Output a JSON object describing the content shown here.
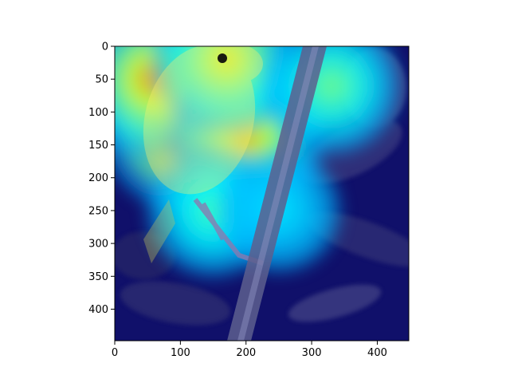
{
  "chart_data": {
    "type": "heatmap",
    "title": "",
    "xlabel": "",
    "ylabel": "",
    "xlim": [
      0,
      448
    ],
    "ylim": [
      448,
      0
    ],
    "y_inverted": true,
    "xticks": [
      0,
      100,
      200,
      300,
      400
    ],
    "yticks": [
      0,
      50,
      100,
      150,
      200,
      250,
      300,
      350,
      400
    ],
    "xtick_labels": [
      "0",
      "100",
      "200",
      "300",
      "400"
    ],
    "ytick_labels": [
      "0",
      "50",
      "100",
      "150",
      "200",
      "250",
      "300",
      "350",
      "400"
    ],
    "grid": false,
    "colormap": "jet",
    "overlay": "activation heatmap blended over photograph of a yellow bird perched on a branch",
    "hotspots": [
      {
        "x": 115,
        "y": 115,
        "intensity": 1.0
      },
      {
        "x": 60,
        "y": 50,
        "intensity": 0.75
      },
      {
        "x": 200,
        "y": 140,
        "intensity": 0.7
      },
      {
        "x": 170,
        "y": 20,
        "intensity": 0.65
      },
      {
        "x": 330,
        "y": 60,
        "intensity": 0.5
      },
      {
        "x": 150,
        "y": 250,
        "intensity": 0.45
      },
      {
        "x": 250,
        "y": 250,
        "intensity": 0.35
      }
    ]
  },
  "colors": {
    "background": "#ffffff",
    "cold": "#10106a",
    "bird": "#f2e23a",
    "branch": "#5d5f8e",
    "hot": "#e0301c"
  }
}
